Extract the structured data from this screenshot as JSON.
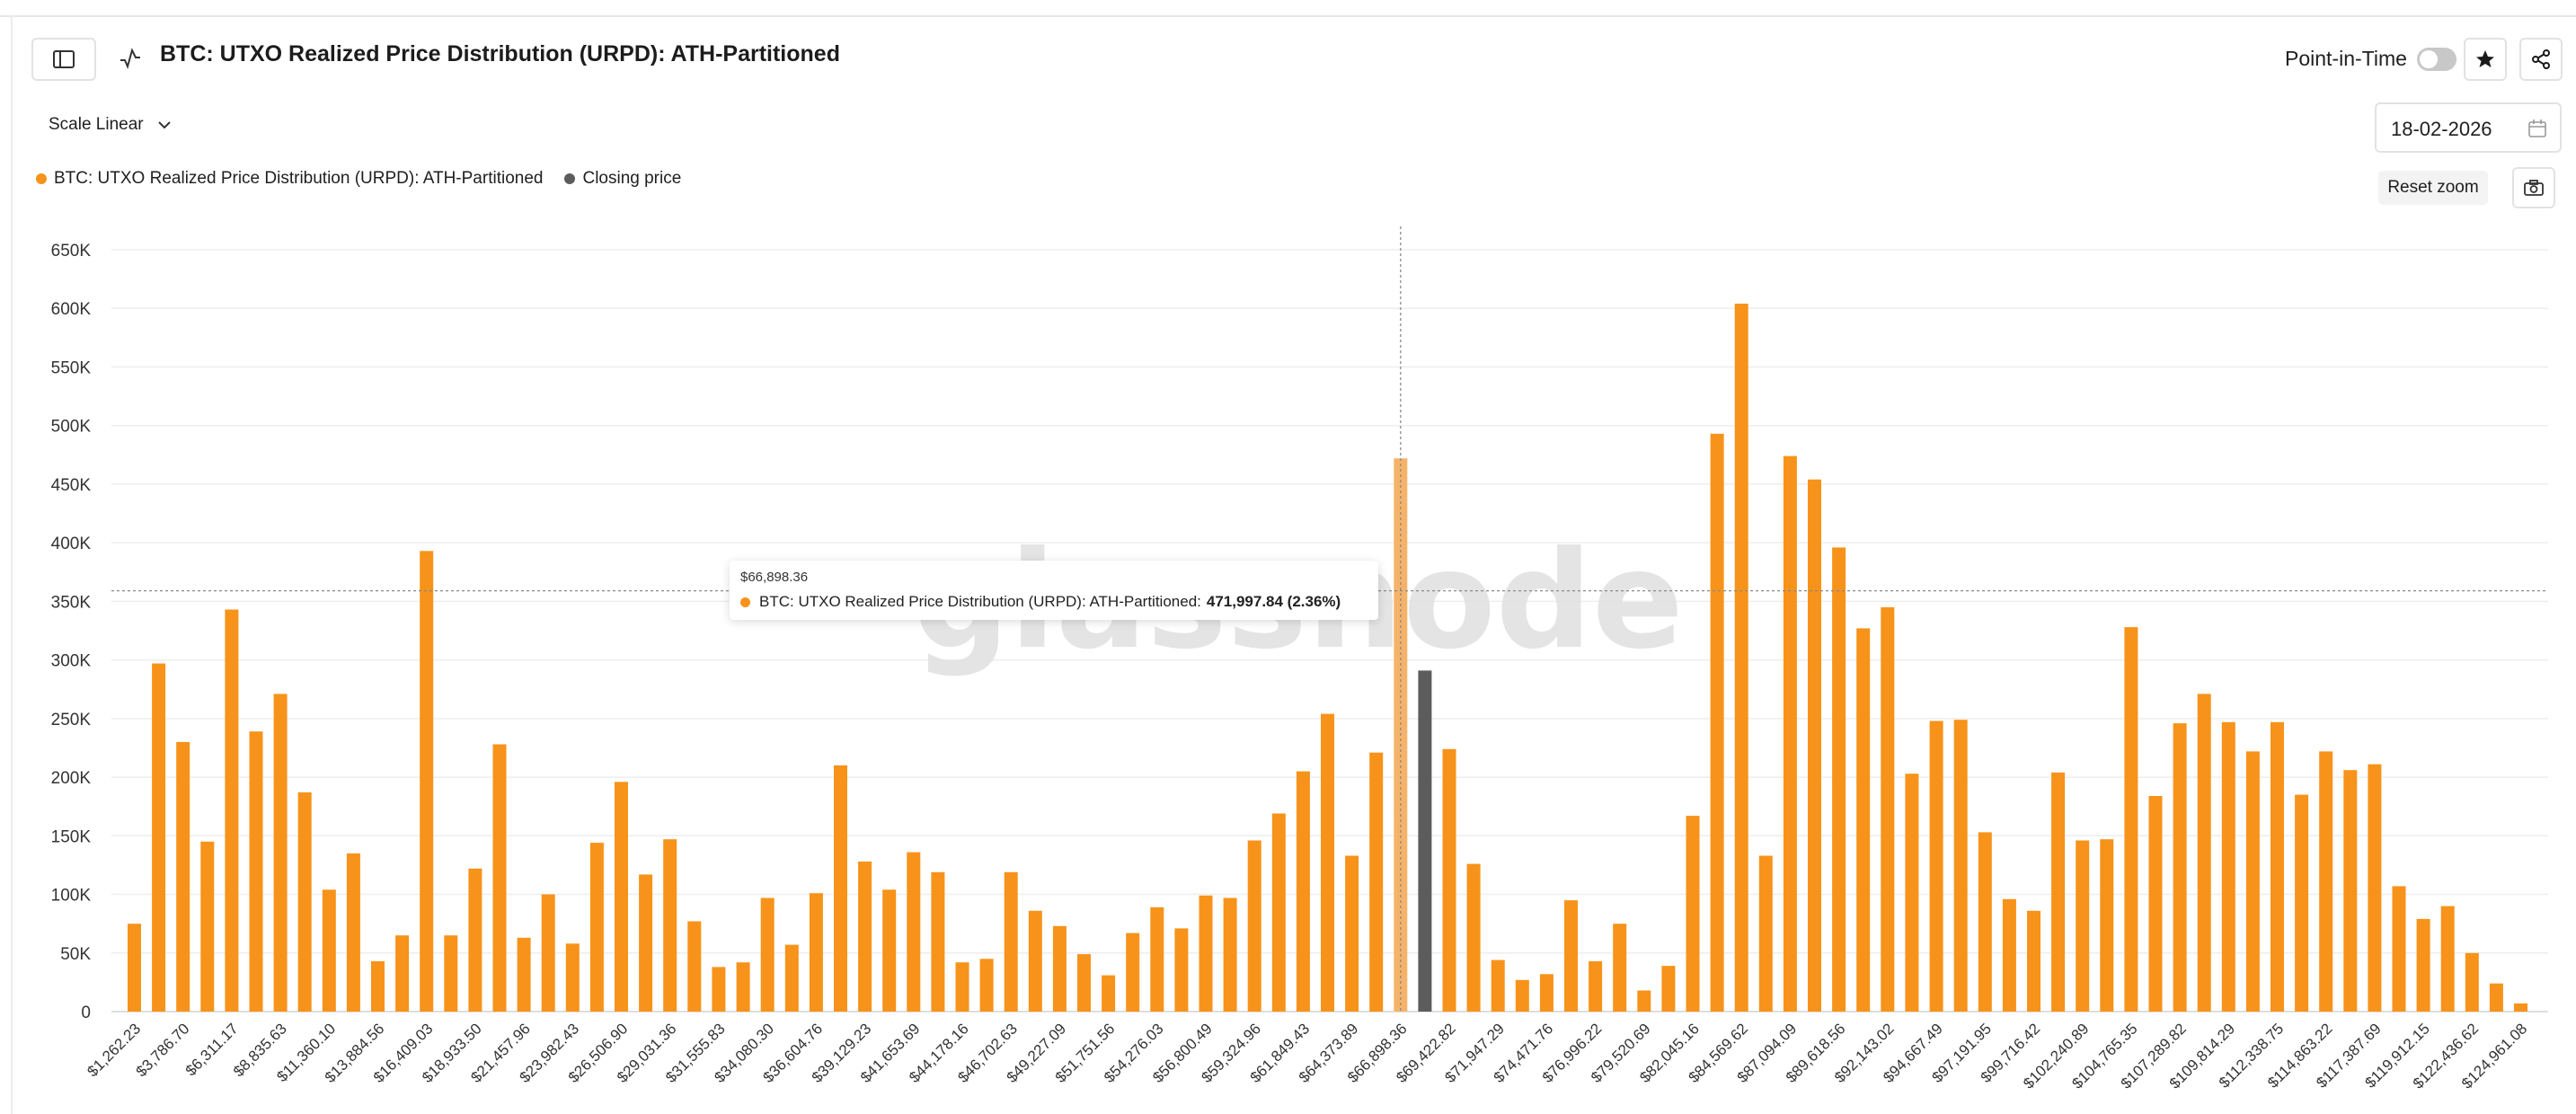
{
  "header": {
    "title": "BTC: UTXO Realized Price Distribution (URPD): ATH-Partitioned",
    "point_in_time_label": "Point-in-Time"
  },
  "controls": {
    "scale_label": "Scale Linear",
    "date": "18-02-2026",
    "reset_zoom_label": "Reset zoom"
  },
  "legend": [
    {
      "label": "BTC: UTXO Realized Price Distribution (URPD): ATH-Partitioned",
      "color": "#f7931a"
    },
    {
      "label": "Closing price",
      "color": "#5c5c5c"
    }
  ],
  "watermark": "glassnode",
  "tooltip": {
    "date": "$66,898.36",
    "series_label": "BTC: UTXO Realized Price Distribution (URPD): ATH-Partitioned:",
    "value": "471,997.84 (2.36%)"
  },
  "chart_data": {
    "type": "bar",
    "ylim": [
      0,
      650000
    ],
    "yticks": [
      0,
      50000,
      100000,
      150000,
      200000,
      250000,
      300000,
      350000,
      400000,
      450000,
      500000,
      550000,
      600000,
      650000
    ],
    "ytick_labels": [
      "0",
      "50K",
      "100K",
      "150K",
      "200K",
      "250K",
      "300K",
      "350K",
      "400K",
      "450K",
      "500K",
      "550K",
      "600K",
      "650K"
    ],
    "xtick_labels": [
      "$1,262.23",
      "$3,786.70",
      "$6,311.17",
      "$8,835.63",
      "$11,360.10",
      "$13,884.56",
      "$16,409.03",
      "$18,933.50",
      "$21,457.96",
      "$23,982.43",
      "$26,506.90",
      "$29,031.36",
      "$31,555.83",
      "$34,080.30",
      "$36,604.76",
      "$39,129.23",
      "$41,653.69",
      "$44,178.16",
      "$46,702.63",
      "$49,227.09",
      "$51,751.56",
      "$54,276.03",
      "$56,800.49",
      "$59,324.96",
      "$61,849.43",
      "$64,373.89",
      "$66,898.36",
      "$69,422.82",
      "$71,947.29",
      "$74,471.76",
      "$76,996.22",
      "$79,520.69",
      "$82,045.16",
      "$84,569.62",
      "$87,094.09",
      "$89,618.56",
      "$92,143.02",
      "$94,667.49",
      "$97,191.95",
      "$99,716.42",
      "$102,240.89",
      "$104,765.35",
      "$107,289.82",
      "$109,814.29",
      "$112,338.75",
      "$114,863.22",
      "$117,387.69",
      "$119,912.15",
      "$122,436.62",
      "$124,961.08"
    ],
    "x_start": 1262.23,
    "x_step": 1262.233,
    "values": [
      75000,
      297000,
      230000,
      145000,
      343000,
      239000,
      271000,
      187000,
      104000,
      135000,
      43000,
      65000,
      393000,
      65000,
      122000,
      228000,
      63000,
      100000,
      58000,
      144000,
      196000,
      117000,
      147000,
      77000,
      38000,
      42000,
      97000,
      57000,
      101000,
      210000,
      128000,
      104000,
      136000,
      119000,
      42000,
      45000,
      119000,
      86000,
      73000,
      49000,
      31000,
      67000,
      89000,
      71000,
      99000,
      97000,
      146000,
      169000,
      205000,
      254000,
      133000,
      221000,
      471998,
      291000,
      224000,
      126000,
      44000,
      27000,
      32000,
      95000,
      43000,
      75000,
      18000,
      39000,
      167000,
      493000,
      604000,
      133000,
      474000,
      454000,
      396000,
      327000,
      345000,
      203000,
      248000,
      249000,
      153000,
      96000,
      86000,
      204000,
      146000,
      147000,
      328000,
      184000,
      246000,
      271000,
      247000,
      222000,
      247000,
      185000,
      222000,
      206000,
      211000,
      107000,
      79000,
      90000,
      50000,
      24000,
      7000
    ],
    "series_colors": {
      "bar": "#f7931a",
      "highlight": "#f5b36a",
      "closing": "#5c5c5c"
    },
    "highlight_index": 52,
    "closing_index": 53,
    "crosshair_value": 359000,
    "grid": true
  }
}
